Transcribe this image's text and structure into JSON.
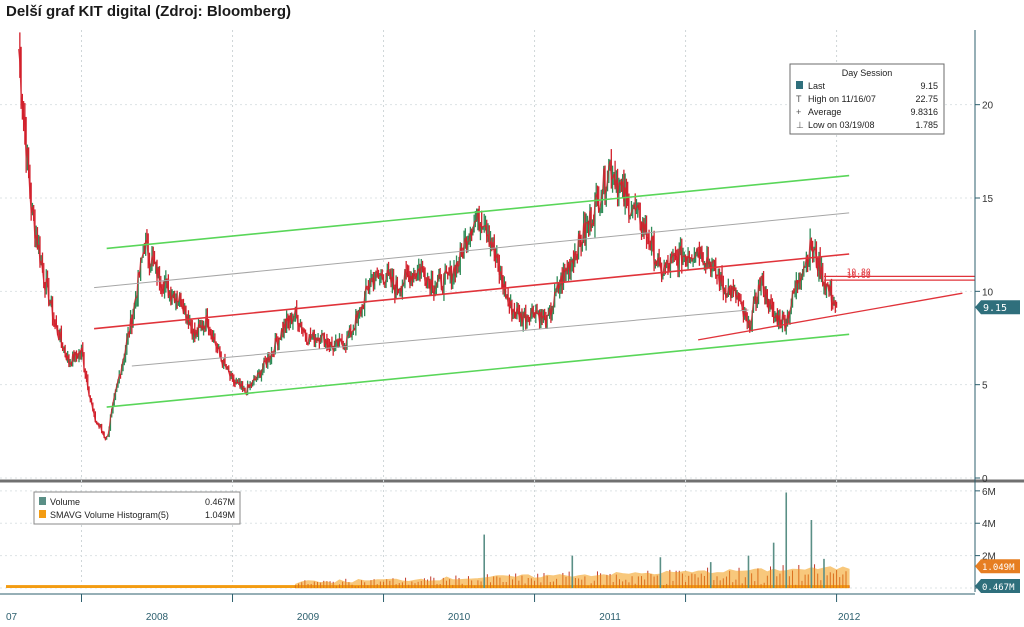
{
  "page": {
    "title": "Delší graf KIT digital (Zdroj: Bloomberg)"
  },
  "colors": {
    "price_up": "#2e8b57",
    "price_down": "#d2202c",
    "channel": "#59d659",
    "trend_red": "#e0333a",
    "mid_gray": "#a6a6a6",
    "volume": "#c0392b",
    "smavg": "#f39c12",
    "axis": "#2c5f6e",
    "badge": "#2f6f7c"
  },
  "chart_data": [
    {
      "type": "line",
      "title": "",
      "xlabel": "",
      "ylabel": "",
      "x_ticks": [
        "07",
        "2008",
        "2009",
        "2010",
        "2011",
        "2012"
      ],
      "y_ticks": [
        0,
        5,
        10,
        15,
        20
      ],
      "ylim": [
        0,
        24
      ],
      "grid": true,
      "legend_position": "top-right",
      "legend": {
        "header": "Day Session",
        "entries": [
          {
            "icon": "square-icon",
            "label": "Last",
            "value": "9.15"
          },
          {
            "icon": "t-icon",
            "label": "High on 11/16/07",
            "value": "22.75"
          },
          {
            "icon": "plus-icon",
            "label": "Average",
            "value": "9.8316"
          },
          {
            "icon": "perp-icon",
            "label": "Low on 03/19/08",
            "value": "1.785"
          }
        ]
      },
      "price_series": {
        "name": "",
        "points": [
          [
            "2007-08",
            23.0
          ],
          [
            "2007-09",
            14.5
          ],
          [
            "2007-10",
            10.8
          ],
          [
            "2007-11",
            8.0
          ],
          [
            "2007-12",
            6.2
          ],
          [
            "2008-01",
            6.8
          ],
          [
            "2008-02",
            3.2
          ],
          [
            "2008-03",
            2.1
          ],
          [
            "2008-04",
            5.5
          ],
          [
            "2008-05",
            8.5
          ],
          [
            "2008-06",
            12.5
          ],
          [
            "2008-07",
            11.0
          ],
          [
            "2008-08",
            10.0
          ],
          [
            "2008-09",
            9.5
          ],
          [
            "2008-10",
            7.6
          ],
          [
            "2008-11",
            8.5
          ],
          [
            "2008-12",
            6.5
          ],
          [
            "2009-01",
            5.2
          ],
          [
            "2009-02",
            4.6
          ],
          [
            "2009-03",
            5.4
          ],
          [
            "2009-04",
            6.6
          ],
          [
            "2009-05",
            8.0
          ],
          [
            "2009-06",
            8.8
          ],
          [
            "2009-07",
            7.5
          ],
          [
            "2009-08",
            7.6
          ],
          [
            "2009-09",
            7.0
          ],
          [
            "2009-10",
            7.3
          ],
          [
            "2009-11",
            8.6
          ],
          [
            "2009-12",
            10.6
          ],
          [
            "2010-01",
            10.9
          ],
          [
            "2010-02",
            10.2
          ],
          [
            "2010-03",
            10.8
          ],
          [
            "2010-04",
            11.2
          ],
          [
            "2010-05",
            10.3
          ],
          [
            "2010-06",
            10.6
          ],
          [
            "2010-07",
            11.6
          ],
          [
            "2010-08",
            13.6
          ],
          [
            "2010-09",
            14.0
          ],
          [
            "2010-10",
            11.5
          ],
          [
            "2010-11",
            9.2
          ],
          [
            "2010-12",
            8.6
          ],
          [
            "2011-01",
            9.0
          ],
          [
            "2011-02",
            8.3
          ],
          [
            "2011-03",
            10.4
          ],
          [
            "2011-04",
            11.8
          ],
          [
            "2011-05",
            13.2
          ],
          [
            "2011-06",
            14.8
          ],
          [
            "2011-07",
            16.8
          ],
          [
            "2011-08",
            15.2
          ],
          [
            "2011-09",
            14.2
          ],
          [
            "2011-10",
            13.0
          ],
          [
            "2011-11",
            11.0
          ],
          [
            "2011-12",
            11.6
          ],
          [
            "2012-01",
            12.0
          ],
          [
            "2012-02",
            12.3
          ],
          [
            "2012-03",
            11.5
          ],
          [
            "2012-04",
            10.2
          ],
          [
            "2012-05",
            9.8
          ],
          [
            "2012-06",
            8.0
          ],
          [
            "2012-07",
            10.6
          ],
          [
            "2012-08",
            8.6
          ],
          [
            "2012-09",
            8.4
          ],
          [
            "2012-10",
            10.8
          ],
          [
            "2012-11",
            12.4
          ],
          [
            "2012-12",
            10.6
          ],
          [
            "2013-01",
            9.15
          ]
        ]
      },
      "trendlines": [
        {
          "style": "upper-channel",
          "from": [
            "2008-03",
            12.3
          ],
          "to": [
            "2013-02",
            16.2
          ]
        },
        {
          "style": "lower-channel",
          "from": [
            "2008-03",
            3.8
          ],
          "to": [
            "2013-02",
            7.7
          ]
        },
        {
          "style": "mid-upper",
          "from": [
            "2008-02",
            10.2
          ],
          "to": [
            "2013-02",
            14.2
          ]
        },
        {
          "style": "mid-lower",
          "from": [
            "2008-05",
            6.0
          ],
          "to": [
            "2012-06",
            9.0
          ]
        },
        {
          "style": "red-trend",
          "from": [
            "2008-02",
            8.0
          ],
          "to": [
            "2013-02",
            12.0
          ]
        },
        {
          "style": "red-support",
          "from": [
            "2012-02",
            7.4
          ],
          "to": [
            "2013-11",
            9.9
          ]
        }
      ],
      "price_levels": [
        {
          "label": "10.80",
          "value": 10.8
        },
        {
          "label": "10.60",
          "value": 10.6
        }
      ],
      "last_price_badge": "9.15"
    },
    {
      "type": "bar",
      "title": "",
      "y_ticks_labels": [
        "0",
        "2M",
        "4M",
        "6M"
      ],
      "ylim": [
        0,
        6.3
      ],
      "legend": [
        {
          "name": "Volume",
          "value": "0.467M"
        },
        {
          "name": "SMAVG Volume Histogram(5)",
          "value": "1.049M"
        }
      ],
      "badges": [
        "1.049M",
        "0.467M"
      ],
      "spikes": [
        [
          "2010-09",
          3.3
        ],
        [
          "2011-04",
          2.0
        ],
        [
          "2011-11",
          1.9
        ],
        [
          "2012-03",
          1.6
        ],
        [
          "2012-06",
          2.0
        ],
        [
          "2012-08",
          2.8
        ],
        [
          "2012-09",
          5.9
        ],
        [
          "2012-11",
          4.2
        ],
        [
          "2012-12",
          1.8
        ]
      ]
    }
  ]
}
